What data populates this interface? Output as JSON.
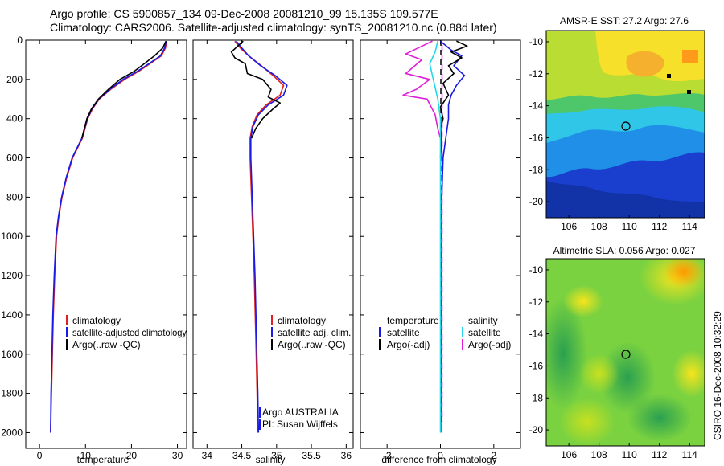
{
  "header": {
    "title_line1": "Argo profile: CS 5900857_134 09-Dec-2008 20081210_99 15.135S 109.577E",
    "title_line2": "Climatology: CARS2006. Satellite-adjusted climatology: synTS_20081210.nc (0.88d later)"
  },
  "footer": {
    "credit1": "Argo AUSTRALIA",
    "credit2": "PI: Susan Wijffels",
    "timestamp": "CSIRO 16-Dec-2008 10:32:29"
  },
  "colors": {
    "climatology": "#e02020",
    "satellite": "#1a1ae6",
    "argo": "#000000",
    "salinity_satellite": "#22d8e8",
    "salinity_argo": "#e020d8"
  },
  "chart_data": [
    {
      "type": "line",
      "xlabel": "temperature",
      "ylabel": "",
      "xlim": [
        -3,
        32
      ],
      "ylim": [
        2080,
        0
      ],
      "xticks": [
        0,
        10,
        20,
        30
      ],
      "yticks": [
        0,
        200,
        400,
        600,
        800,
        1000,
        1200,
        1400,
        1600,
        1800,
        2000
      ],
      "legend": [
        "climatology",
        "satellite-adjusted climatology",
        "Argo(..raw -QC)"
      ],
      "legend_position": "lower-right",
      "series": [
        {
          "name": "climatology",
          "color": "#e02020",
          "x": [
            27.6,
            27.4,
            26.5,
            24.0,
            21.5,
            18.5,
            15.5,
            13.0,
            11.5,
            10.5,
            9.3,
            7.2,
            5.9,
            4.9,
            4.2,
            3.7,
            3.3,
            3.0,
            2.8,
            2.6,
            2.4
          ],
          "y": [
            5,
            40,
            80,
            120,
            160,
            200,
            250,
            300,
            350,
            400,
            500,
            600,
            700,
            800,
            900,
            1000,
            1200,
            1400,
            1600,
            1800,
            2000
          ]
        },
        {
          "name": "satellite-adjusted climatology",
          "color": "#1a1ae6",
          "x": [
            27.6,
            27.2,
            26.3,
            23.8,
            21.2,
            18.2,
            15.3,
            12.9,
            11.4,
            10.4,
            9.2,
            7.1,
            5.8,
            4.8,
            4.1,
            3.6,
            3.2,
            2.9,
            2.7,
            2.5,
            2.4
          ],
          "y": [
            5,
            40,
            80,
            120,
            160,
            200,
            250,
            300,
            350,
            400,
            500,
            600,
            700,
            800,
            900,
            1000,
            1200,
            1400,
            1600,
            1800,
            2000
          ]
        },
        {
          "name": "Argo(..raw -QC)",
          "color": "#000000",
          "x": [
            27.5,
            26.8,
            25.0,
            22.8,
            20.5,
            17.5,
            15.0,
            12.8,
            11.3,
            10.3,
            9.2
          ],
          "y": [
            5,
            40,
            80,
            120,
            160,
            200,
            250,
            300,
            350,
            400,
            500
          ]
        }
      ]
    },
    {
      "type": "line",
      "xlabel": "salinity",
      "ylabel": "",
      "xlim": [
        33.8,
        36.1
      ],
      "ylim": [
        2080,
        0
      ],
      "xticks": [
        34,
        34.5,
        35,
        35.5,
        36
      ],
      "legend": [
        "climatology",
        "satellite adj. clim.",
        "Argo(..raw -QC)"
      ],
      "legend_position": "lower-right",
      "series": [
        {
          "name": "climatology",
          "color": "#e02020",
          "x": [
            34.4,
            34.48,
            34.6,
            34.78,
            34.95,
            35.1,
            35.05,
            34.85,
            34.72,
            34.65,
            34.62,
            34.62,
            34.64,
            34.66,
            34.68,
            34.7,
            34.72,
            34.73
          ],
          "y": [
            5,
            40,
            80,
            130,
            180,
            230,
            280,
            330,
            380,
            440,
            500,
            600,
            800,
            1000,
            1200,
            1500,
            1800,
            2000
          ]
        },
        {
          "name": "satellite adj. clim.",
          "color": "#1a1ae6",
          "x": [
            34.42,
            34.5,
            34.6,
            34.77,
            34.98,
            35.15,
            35.1,
            34.88,
            34.74,
            34.66,
            34.63,
            34.63,
            34.65,
            34.67,
            34.69,
            34.71,
            34.73,
            34.74
          ],
          "y": [
            5,
            40,
            80,
            130,
            180,
            230,
            280,
            330,
            380,
            440,
            500,
            600,
            800,
            1000,
            1200,
            1500,
            1800,
            2000
          ]
        },
        {
          "name": "Argo(..raw -QC)",
          "color": "#000000",
          "x": [
            34.52,
            34.35,
            34.4,
            34.55,
            34.58,
            34.8,
            34.92,
            34.88,
            35.05,
            34.95,
            34.8,
            34.7,
            34.64
          ],
          "y": [
            5,
            60,
            90,
            120,
            170,
            200,
            250,
            290,
            320,
            350,
            400,
            450,
            500
          ]
        }
      ]
    },
    {
      "type": "line",
      "xlabel": "difference from climatology",
      "ylabel": "",
      "xlim": [
        -3,
        3
      ],
      "ylim": [
        2080,
        0
      ],
      "xticks": [
        -2,
        0,
        2
      ],
      "legend": [
        "temperature",
        "satellite",
        "Argo(-adj)",
        "salinity",
        "satellite",
        "Argo(-adj)"
      ],
      "legend_position": "lower",
      "series": [
        {
          "name": "satellite",
          "color": "#1a1ae6",
          "x": [
            0.0,
            0.4,
            0.8,
            0.5,
            0.9,
            0.6,
            0.4,
            0.3,
            0.3,
            0.2,
            0.1,
            0.05,
            0.05,
            0.05,
            0.05,
            0.05
          ],
          "y": [
            5,
            50,
            80,
            130,
            180,
            230,
            280,
            330,
            400,
            500,
            600,
            800,
            1000,
            1200,
            1600,
            2000
          ]
        },
        {
          "name": "Argo(-adj)",
          "color": "#000000",
          "x": [
            0.6,
            1.0,
            0.4,
            0.8,
            0.3,
            0.5,
            0.1,
            0.3,
            0.0,
            0.1,
            0.0,
            0.05,
            0.0
          ],
          "y": [
            5,
            30,
            60,
            90,
            130,
            170,
            220,
            280,
            340,
            400,
            450,
            500,
            600
          ]
        },
        {
          "name": "Argo(-adj) salinity",
          "color": "#e020d8",
          "x": [
            -0.3,
            -1.3,
            -0.7,
            -1.3,
            -0.4,
            -0.9,
            -1.4,
            -0.5,
            -0.2,
            -0.1,
            0.0
          ],
          "y": [
            5,
            70,
            100,
            170,
            200,
            250,
            280,
            300,
            380,
            450,
            500
          ]
        },
        {
          "name": "satellite salinity",
          "color": "#22d8e8",
          "x": [
            -0.1,
            -0.2,
            -0.4,
            -0.3,
            -0.2,
            -0.1,
            0.0,
            0.0,
            0.0,
            0.0,
            0.0,
            0.0
          ],
          "y": [
            5,
            60,
            120,
            180,
            240,
            300,
            400,
            600,
            1000,
            1400,
            1800,
            2000
          ]
        }
      ]
    },
    {
      "type": "heatmap",
      "title": "AMSR-E SST: 27.2 Argo: 27.6",
      "xlim": [
        104.5,
        115
      ],
      "ylim": [
        -21,
        -9.3
      ],
      "xticks": [
        106,
        108,
        110,
        112,
        114
      ],
      "yticks": [
        -10,
        -12,
        -14,
        -16,
        -18,
        -20
      ],
      "marker": {
        "lon": 109.6,
        "lat": -15.2
      }
    },
    {
      "type": "heatmap",
      "title": "Altimetric SLA: 0.056 Argo: 0.027",
      "xlim": [
        104.5,
        115
      ],
      "ylim": [
        -21,
        -9.3
      ],
      "xticks": [
        106,
        108,
        110,
        112,
        114
      ],
      "yticks": [
        -10,
        -12,
        -14,
        -16,
        -18,
        -20
      ],
      "marker": {
        "lon": 109.6,
        "lat": -15.2
      }
    }
  ]
}
